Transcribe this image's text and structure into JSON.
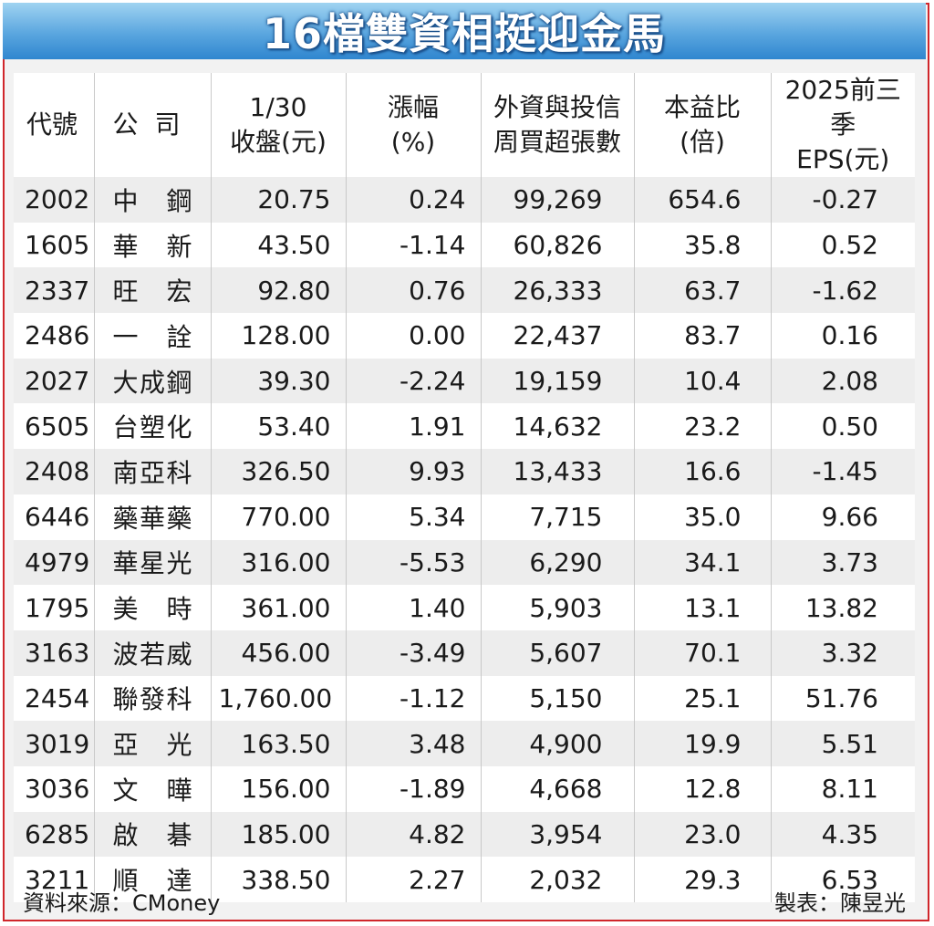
{
  "title": "16檔雙資相挺迎金馬",
  "headers": {
    "code": "代號",
    "company": "公司",
    "close_l1": "1/30",
    "close_l2": "收盤(元)",
    "change_l1": "漲幅",
    "change_l2": "(%)",
    "weekly_l1": "外資與投信",
    "weekly_l2": "周買超張數",
    "pe_l1": "本益比",
    "pe_l2": "(倍)",
    "eps_l1": "2025前三季",
    "eps_l2": "EPS(元)"
  },
  "rows": [
    {
      "code": "2002",
      "name": "中鋼",
      "close": "20.75",
      "change": "0.24",
      "net_buy": "99,269",
      "pe": "654.6",
      "eps": "-0.27"
    },
    {
      "code": "1605",
      "name": "華新",
      "close": "43.50",
      "change": "-1.14",
      "net_buy": "60,826",
      "pe": "35.8",
      "eps": "0.52"
    },
    {
      "code": "2337",
      "name": "旺宏",
      "close": "92.80",
      "change": "0.76",
      "net_buy": "26,333",
      "pe": "63.7",
      "eps": "-1.62"
    },
    {
      "code": "2486",
      "name": "一詮",
      "close": "128.00",
      "change": "0.00",
      "net_buy": "22,437",
      "pe": "83.7",
      "eps": "0.16"
    },
    {
      "code": "2027",
      "name": "大成鋼",
      "close": "39.30",
      "change": "-2.24",
      "net_buy": "19,159",
      "pe": "10.4",
      "eps": "2.08"
    },
    {
      "code": "6505",
      "name": "台塑化",
      "close": "53.40",
      "change": "1.91",
      "net_buy": "14,632",
      "pe": "23.2",
      "eps": "0.50"
    },
    {
      "code": "2408",
      "name": "南亞科",
      "close": "326.50",
      "change": "9.93",
      "net_buy": "13,433",
      "pe": "16.6",
      "eps": "-1.45"
    },
    {
      "code": "6446",
      "name": "藥華藥",
      "close": "770.00",
      "change": "5.34",
      "net_buy": "7,715",
      "pe": "35.0",
      "eps": "9.66"
    },
    {
      "code": "4979",
      "name": "華星光",
      "close": "316.00",
      "change": "-5.53",
      "net_buy": "6,290",
      "pe": "34.1",
      "eps": "3.73"
    },
    {
      "code": "1795",
      "name": "美時",
      "close": "361.00",
      "change": "1.40",
      "net_buy": "5,903",
      "pe": "13.1",
      "eps": "13.82"
    },
    {
      "code": "3163",
      "name": "波若威",
      "close": "456.00",
      "change": "-3.49",
      "net_buy": "5,607",
      "pe": "70.1",
      "eps": "3.32"
    },
    {
      "code": "2454",
      "name": "聯發科",
      "close": "1,760.00",
      "change": "-1.12",
      "net_buy": "5,150",
      "pe": "25.1",
      "eps": "51.76"
    },
    {
      "code": "3019",
      "name": "亞光",
      "close": "163.50",
      "change": "3.48",
      "net_buy": "4,900",
      "pe": "19.9",
      "eps": "5.51"
    },
    {
      "code": "3036",
      "name": "文曄",
      "close": "156.00",
      "change": "-1.89",
      "net_buy": "4,668",
      "pe": "12.8",
      "eps": "8.11"
    },
    {
      "code": "6285",
      "name": "啟碁",
      "close": "185.00",
      "change": "4.82",
      "net_buy": "3,954",
      "pe": "23.0",
      "eps": "4.35"
    },
    {
      "code": "3211",
      "name": "順達",
      "close": "338.50",
      "change": "2.27",
      "net_buy": "2,032",
      "pe": "29.3",
      "eps": "6.53"
    }
  ],
  "footer": {
    "source": "資料來源：CMoney",
    "credit": "製表：陳昱光"
  },
  "colors": {
    "border": "#d0262b",
    "title_bg": "#5aa6df",
    "row_alt": "#ededed"
  }
}
